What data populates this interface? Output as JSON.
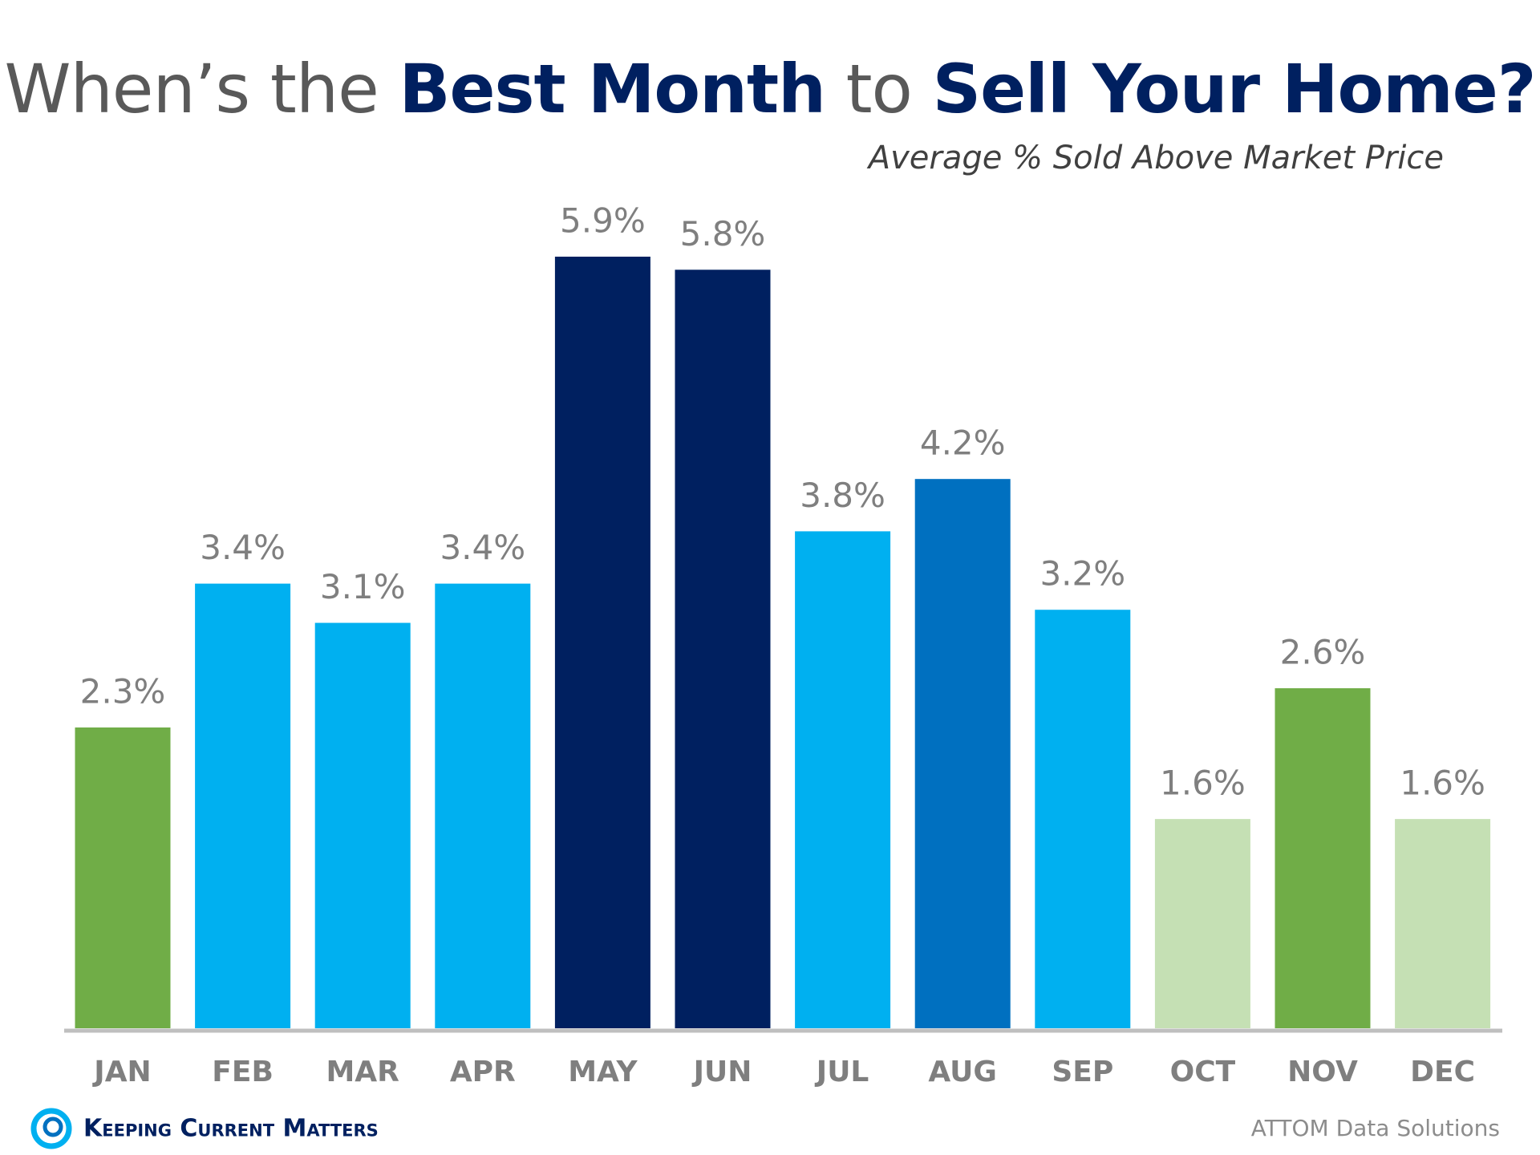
{
  "chart_data": {
    "type": "bar",
    "title": [
      "When’s the",
      "Best Month",
      "to",
      "Sell Your Home?"
    ],
    "subtitle": "Average % Sold Above Market Price",
    "categories": [
      "JAN",
      "FEB",
      "MAR",
      "APR",
      "MAY",
      "JUN",
      "JUL",
      "AUG",
      "SEP",
      "OCT",
      "NOV",
      "DEC"
    ],
    "values": [
      2.3,
      3.4,
      3.1,
      3.4,
      5.9,
      5.8,
      3.8,
      4.2,
      3.2,
      1.6,
      2.6,
      1.6
    ],
    "value_labels": [
      "2.3%",
      "3.4%",
      "3.1%",
      "3.4%",
      "5.9%",
      "5.8%",
      "3.8%",
      "4.2%",
      "3.2%",
      "1.6%",
      "2.6%",
      "1.6%"
    ],
    "colors": [
      "#70ad47",
      "#00b0f0",
      "#00b0f0",
      "#00b0f0",
      "#002060",
      "#002060",
      "#00b0f0",
      "#0070c0",
      "#00b0f0",
      "#c5e0b4",
      "#70ad47",
      "#c5e0b4"
    ],
    "logo_text": "Keeping Current Matters",
    "source": "ATTOM Data Solutions"
  }
}
